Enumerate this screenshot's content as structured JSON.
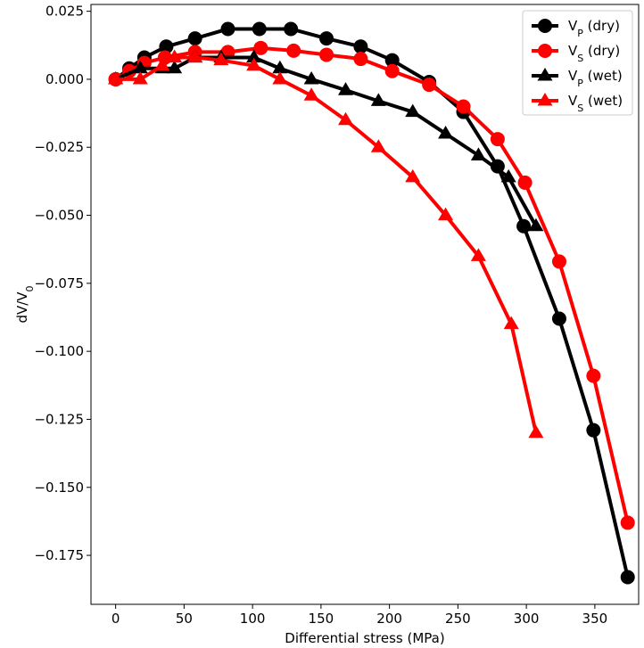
{
  "chart_data": {
    "type": "line",
    "title": "",
    "xlabel": "Differential stress (MPa)",
    "ylabel": "dV/V",
    "ylabel_subscript": "0",
    "xlim": [
      -18,
      382
    ],
    "ylim": [
      -0.193,
      0.0275
    ],
    "x_ticks": [
      0,
      50,
      100,
      150,
      200,
      250,
      300,
      350
    ],
    "x_tick_labels": [
      "0",
      "50",
      "100",
      "150",
      "200",
      "250",
      "300",
      "350"
    ],
    "y_ticks": [
      0.025,
      0.0,
      -0.025,
      -0.05,
      -0.075,
      -0.1,
      -0.125,
      -0.15,
      -0.175
    ],
    "y_tick_labels": [
      "0.025",
      "0.000",
      "−0.025",
      "−0.050",
      "−0.075",
      "−0.100",
      "−0.125",
      "−0.150",
      "−0.175"
    ],
    "grid": false,
    "legend_position": "top-right",
    "series": [
      {
        "name": "V",
        "name_sub": "P",
        "name_suffix": " (dry)",
        "color": "#000000",
        "marker": "circle",
        "x": [
          0,
          10,
          21,
          37,
          58,
          82,
          105,
          128,
          154,
          179,
          202,
          229,
          254,
          279,
          298,
          324,
          349,
          374
        ],
        "y": [
          0.0,
          0.004,
          0.008,
          0.012,
          0.015,
          0.0185,
          0.0185,
          0.0185,
          0.015,
          0.012,
          0.007,
          -0.001,
          -0.012,
          -0.032,
          -0.054,
          -0.088,
          -0.129,
          -0.183
        ]
      },
      {
        "name": "V",
        "name_sub": "S",
        "name_suffix": " (dry)",
        "color": "#ff0000",
        "marker": "circle",
        "x": [
          0,
          10,
          21,
          36,
          58,
          82,
          106,
          130,
          154,
          179,
          202,
          229,
          254,
          279,
          299,
          324,
          349,
          374
        ],
        "y": [
          0.0,
          0.003,
          0.006,
          0.008,
          0.01,
          0.01,
          0.0115,
          0.0105,
          0.009,
          0.0075,
          0.003,
          -0.002,
          -0.01,
          -0.022,
          -0.038,
          -0.067,
          -0.109,
          -0.163
        ]
      },
      {
        "name": "V",
        "name_sub": "P",
        "name_suffix": " (wet)",
        "color": "#000000",
        "marker": "triangle",
        "x": [
          0,
          18,
          34,
          43,
          58,
          77,
          101,
          120,
          143,
          168,
          192,
          217,
          241,
          265,
          287,
          307
        ],
        "y": [
          0.0,
          0.004,
          0.004,
          0.004,
          0.008,
          0.008,
          0.008,
          0.004,
          0.0,
          -0.004,
          -0.008,
          -0.012,
          -0.02,
          -0.028,
          -0.036,
          -0.054
        ]
      },
      {
        "name": "V",
        "name_sub": "S",
        "name_suffix": " (wet)",
        "color": "#ff0000",
        "marker": "triangle",
        "x": [
          0,
          18,
          34,
          43,
          58,
          77,
          101,
          120,
          143,
          168,
          192,
          217,
          241,
          265,
          289,
          307
        ],
        "y": [
          0.0,
          0.0,
          0.005,
          0.008,
          0.008,
          0.007,
          0.005,
          0.0,
          -0.006,
          -0.015,
          -0.025,
          -0.036,
          -0.05,
          -0.065,
          -0.09,
          -0.13
        ]
      }
    ]
  }
}
